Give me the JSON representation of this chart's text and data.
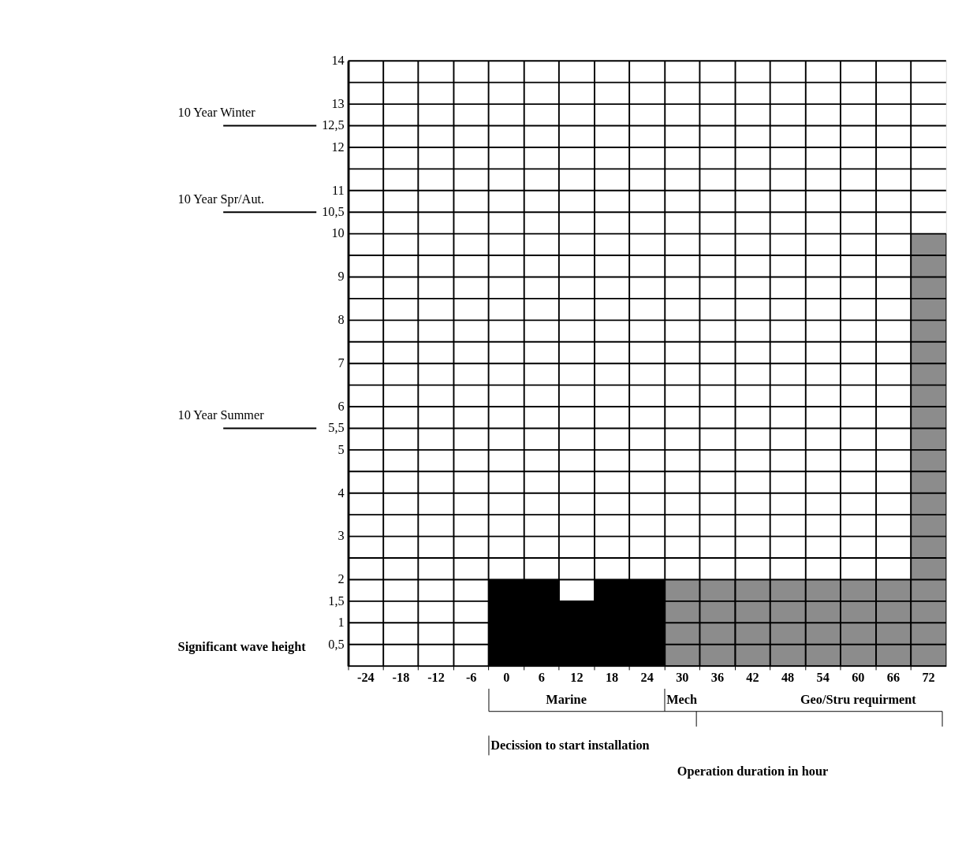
{
  "chart_data": {
    "type": "bar",
    "categories": [
      "-24",
      "-18",
      "-12",
      "-6",
      "0",
      "6",
      "12",
      "18",
      "24",
      "30",
      "36",
      "42",
      "48",
      "54",
      "60",
      "66",
      "72"
    ],
    "series": [
      {
        "color": "#000000",
        "values": [
          null,
          null,
          null,
          null,
          2,
          2,
          1.5,
          2,
          2,
          null,
          null,
          null,
          null,
          null,
          null,
          null,
          null
        ]
      },
      {
        "color": "#8c8c8c",
        "values": [
          null,
          null,
          null,
          null,
          null,
          null,
          null,
          null,
          null,
          2,
          2,
          2,
          2,
          2,
          2,
          2,
          10
        ]
      }
    ],
    "ylim": [
      0,
      14
    ],
    "yticks": [
      {
        "value": 0,
        "label": null
      },
      {
        "value": 0.5,
        "label": "0,5"
      },
      1,
      {
        "value": 1.5,
        "label": "1,5"
      },
      2,
      {
        "value": 2.5,
        "label": null
      },
      3,
      {
        "value": 3.5,
        "label": null
      },
      4,
      {
        "value": 4.5,
        "label": null
      },
      5,
      {
        "value": 5.5,
        "label": "5,5"
      },
      6,
      {
        "value": 6.5,
        "label": null
      },
      7,
      {
        "value": 7.5,
        "label": null
      },
      8,
      {
        "value": 8.5,
        "label": null
      },
      9,
      {
        "value": 9.5,
        "label": null
      },
      10,
      {
        "value": 10.5,
        "label": "10,5"
      },
      11,
      {
        "value": 11.5,
        "label": null
      },
      12,
      {
        "value": 12.5,
        "label": "12,5"
      },
      13,
      {
        "value": 13.5,
        "label": null
      },
      14
    ],
    "ref_lines": [
      {
        "axis": "y",
        "value": 12.5,
        "label": "10 Year Winter"
      },
      {
        "axis": "y",
        "value": 10.5,
        "label": "10 Year Spr/Aut."
      },
      {
        "axis": "y",
        "value": 5.5,
        "label": "10 Year Summer"
      }
    ],
    "annotations": [
      "Marine",
      "Mech",
      "Geo/Stru requirment",
      "Decission to start installation",
      "Significant wave height",
      "Operation duration in hour"
    ],
    "grid": true
  }
}
